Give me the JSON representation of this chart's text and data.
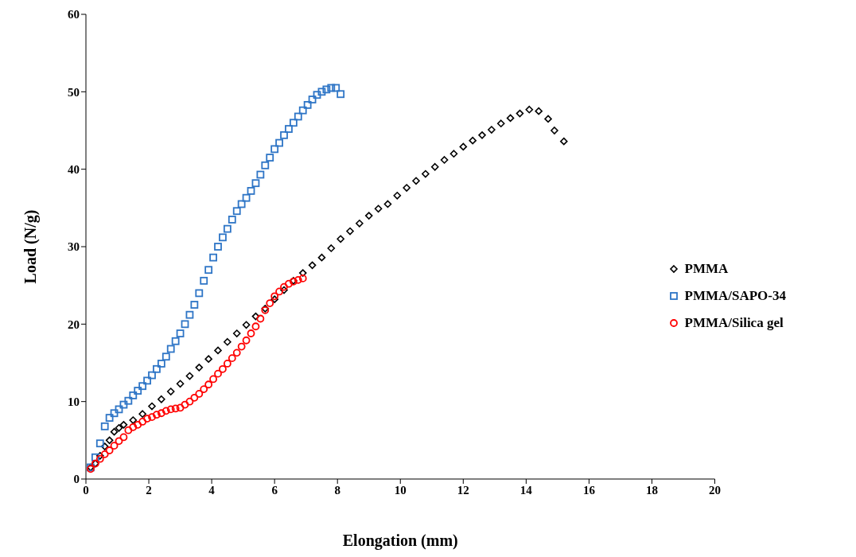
{
  "chart_data": {
    "type": "scatter",
    "xlabel": "Elongation (mm)",
    "ylabel": "Load (N/g)",
    "xlim": [
      0,
      20
    ],
    "xticks": [
      0,
      2,
      4,
      6,
      8,
      10,
      12,
      14,
      16,
      18,
      20
    ],
    "ylim": [
      0,
      60
    ],
    "yticks": [
      0,
      10,
      20,
      30,
      40,
      50,
      60
    ],
    "grid": false,
    "legend": "right",
    "series": [
      {
        "name": "PMMA",
        "color": "#000000",
        "marker": "diamond",
        "x": [
          0.15,
          0.3,
          0.45,
          0.6,
          0.75,
          0.9,
          1.05,
          1.2,
          1.5,
          1.8,
          2.1,
          2.4,
          2.7,
          3,
          3.3,
          3.6,
          3.9,
          4.2,
          4.5,
          4.8,
          5.1,
          5.4,
          5.7,
          6,
          6.3,
          6.6,
          6.9,
          7.2,
          7.5,
          7.8,
          8.1,
          8.4,
          8.7,
          9,
          9.3,
          9.6,
          9.9,
          10.2,
          10.5,
          10.8,
          11.1,
          11.4,
          11.7,
          12,
          12.3,
          12.6,
          12.9,
          13.2,
          13.5,
          13.8,
          14.1,
          14.4,
          14.7,
          14.9,
          15.2
        ],
        "values": [
          1.5,
          2,
          3,
          4.2,
          5,
          6.1,
          6.6,
          7,
          7.6,
          8.4,
          9.4,
          10.3,
          11.3,
          12.3,
          13.3,
          14.4,
          15.5,
          16.6,
          17.7,
          18.8,
          19.9,
          21,
          22,
          23.2,
          24.4,
          25.6,
          26.6,
          27.6,
          28.6,
          29.8,
          31,
          32,
          33,
          34,
          34.9,
          35.5,
          36.6,
          37.6,
          38.5,
          39.4,
          40.3,
          41.2,
          42,
          42.9,
          43.7,
          44.4,
          45.1,
          45.9,
          46.6,
          47.2,
          47.7,
          47.5,
          46.5,
          45,
          43.6
        ]
      },
      {
        "name": "PMMA/SAPO-34",
        "color": "#2e75c6",
        "marker": "square",
        "x": [
          0.15,
          0.3,
          0.45,
          0.6,
          0.75,
          0.9,
          1.05,
          1.2,
          1.35,
          1.5,
          1.65,
          1.8,
          1.95,
          2.1,
          2.25,
          2.4,
          2.55,
          2.7,
          2.85,
          3,
          3.15,
          3.3,
          3.45,
          3.6,
          3.75,
          3.9,
          4.05,
          4.2,
          4.35,
          4.5,
          4.65,
          4.8,
          4.95,
          5.1,
          5.25,
          5.4,
          5.55,
          5.7,
          5.85,
          6,
          6.15,
          6.3,
          6.45,
          6.6,
          6.75,
          6.9,
          7.05,
          7.2,
          7.35,
          7.5,
          7.65,
          7.8,
          7.95,
          8.1
        ],
        "values": [
          1.5,
          2.8,
          4.6,
          6.8,
          7.9,
          8.5,
          9,
          9.6,
          10.1,
          10.8,
          11.4,
          12,
          12.7,
          13.4,
          14.2,
          14.9,
          15.8,
          16.8,
          17.8,
          18.8,
          20,
          21.2,
          22.5,
          24,
          25.6,
          27,
          28.6,
          30,
          31.2,
          32.3,
          33.5,
          34.6,
          35.5,
          36.3,
          37.2,
          38.2,
          39.3,
          40.5,
          41.5,
          42.6,
          43.4,
          44.4,
          45.2,
          46,
          46.8,
          47.6,
          48.3,
          49,
          49.6,
          50,
          50.3,
          50.5,
          50.5,
          49.7
        ]
      },
      {
        "name": "PMMA/Silica gel",
        "color": "#ff0000",
        "marker": "circle",
        "x": [
          0.15,
          0.3,
          0.45,
          0.6,
          0.75,
          0.9,
          1.05,
          1.2,
          1.35,
          1.5,
          1.65,
          1.8,
          1.95,
          2.1,
          2.25,
          2.4,
          2.55,
          2.7,
          2.85,
          3,
          3.15,
          3.3,
          3.45,
          3.6,
          3.75,
          3.9,
          4.05,
          4.2,
          4.35,
          4.5,
          4.65,
          4.8,
          4.95,
          5.1,
          5.25,
          5.4,
          5.55,
          5.7,
          5.85,
          6,
          6.15,
          6.3,
          6.45,
          6.6,
          6.75,
          6.9
        ],
        "values": [
          1.3,
          2,
          2.6,
          3.2,
          3.7,
          4.3,
          4.9,
          5.4,
          6.3,
          6.7,
          7,
          7.4,
          7.8,
          8,
          8.3,
          8.5,
          8.8,
          9,
          9.1,
          9.2,
          9.6,
          10,
          10.5,
          11,
          11.6,
          12.2,
          12.9,
          13.6,
          14.2,
          14.9,
          15.6,
          16.3,
          17.1,
          17.9,
          18.8,
          19.7,
          20.7,
          21.8,
          22.7,
          23.6,
          24.2,
          24.8,
          25.2,
          25.5,
          25.7,
          25.9
        ]
      }
    ]
  }
}
